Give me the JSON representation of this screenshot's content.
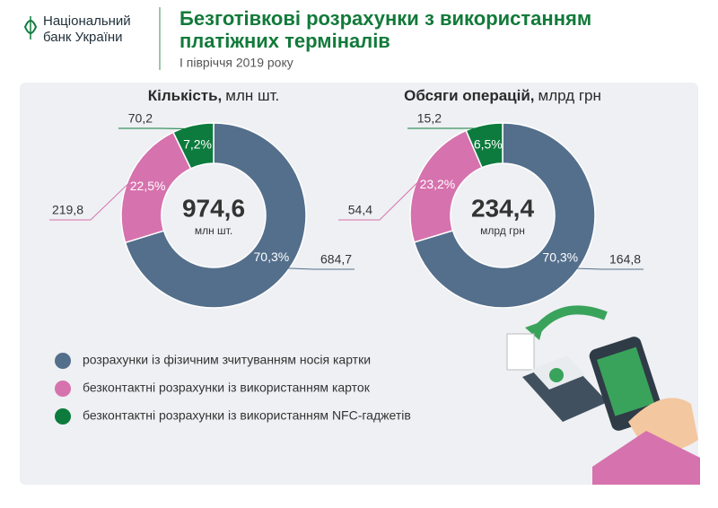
{
  "header": {
    "logo_line1": "Національний",
    "logo_line2": "банк України",
    "title_line1": "Безготівкові розрахунки з використанням",
    "title_line2": "платіжних терміналів",
    "subtitle": "І півріччя  2019 року"
  },
  "legend": {
    "names": [
      "розрахунки із фізичним зчитуванням носія картки",
      "безконтактні розрахунки із використанням карток",
      "безконтактні розрахунки із використанням NFC-гаджетів"
    ],
    "colors": [
      "#546f8c",
      "#d672ad",
      "#0d7b3d"
    ]
  },
  "chart_data": [
    {
      "type": "donut",
      "title": "Кількість,",
      "unit": "млн шт.",
      "total_label": "974,6",
      "values": [
        684.7,
        219.8,
        70.2
      ],
      "value_labels": [
        "684,7",
        "219,8",
        "70,2"
      ],
      "percent_labels": [
        "70,3%",
        "22,5%",
        "7,2%"
      ]
    },
    {
      "type": "donut",
      "title": "Обсяги операцій,",
      "unit": "млрд грн",
      "total_label": "234,4",
      "values": [
        164.8,
        54.4,
        15.2
      ],
      "value_labels": [
        "164,8",
        "54,4",
        "15,2"
      ],
      "percent_labels": [
        "70,3%",
        "23,2%",
        "6,5%"
      ]
    }
  ]
}
